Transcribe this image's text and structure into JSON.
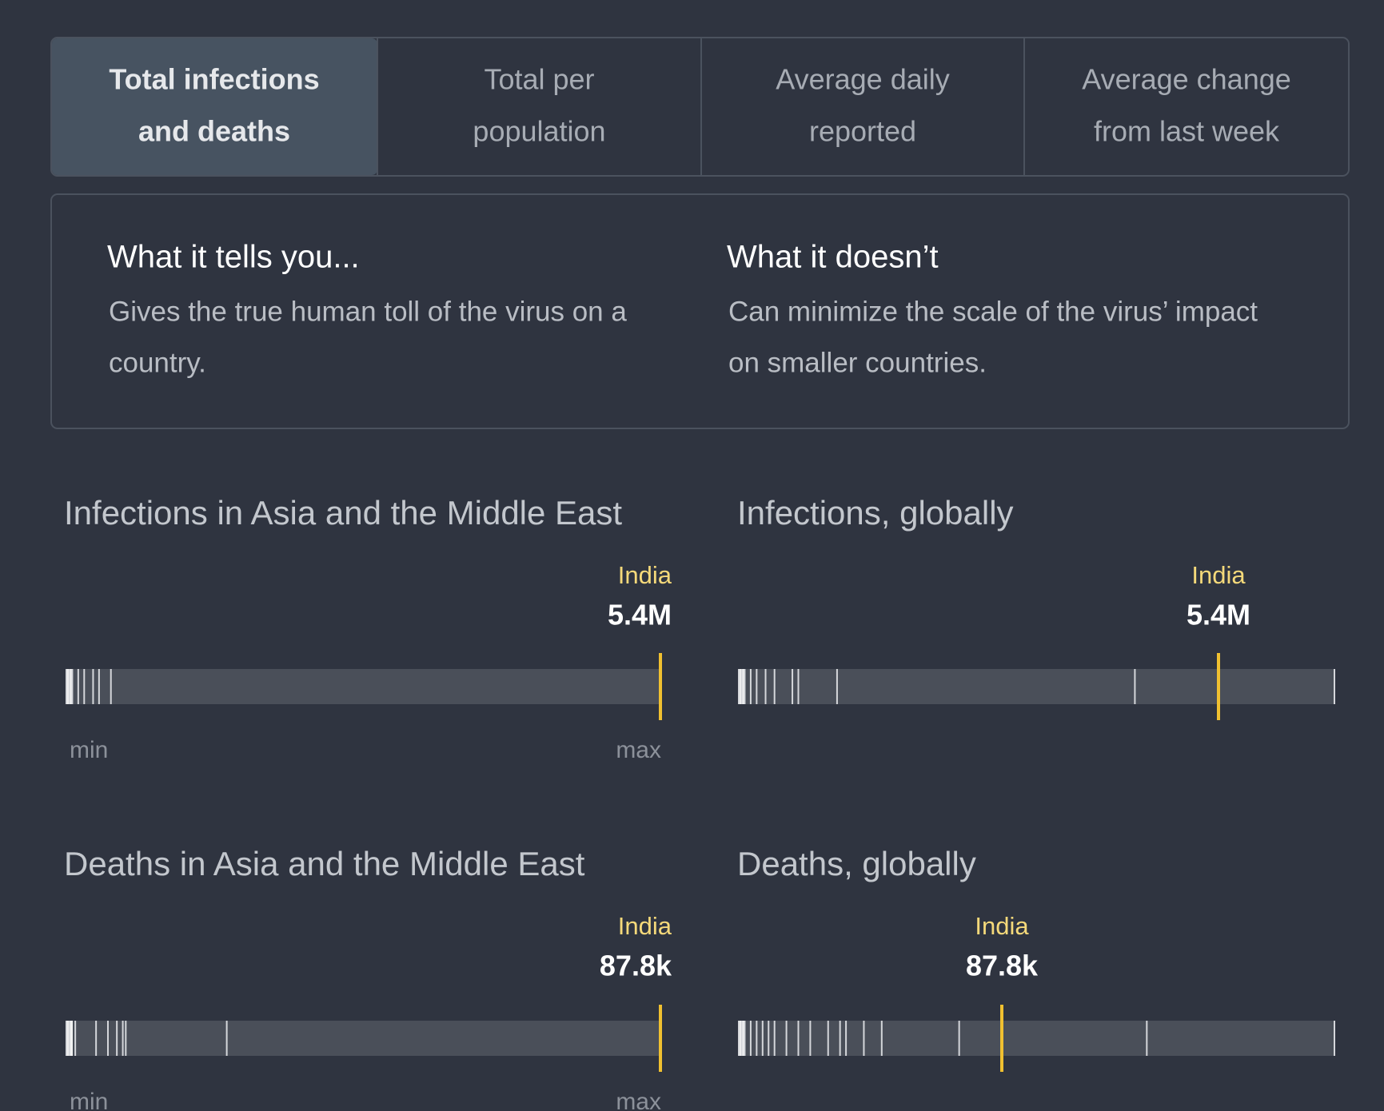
{
  "tabs": [
    {
      "label": [
        "Total infections",
        "and deaths"
      ],
      "active": true
    },
    {
      "label": [
        "Total per",
        "population"
      ],
      "active": false
    },
    {
      "label": [
        "Average daily",
        "reported"
      ],
      "active": false
    },
    {
      "label": [
        "Average change",
        "from last week"
      ],
      "active": false
    }
  ],
  "info": [
    {
      "heading": "What it tells you...",
      "text": [
        "Gives the true human toll of the virus on a",
        "country."
      ]
    },
    {
      "heading": "What it doesn’t",
      "text": [
        "Can minimize the scale of the virus’ impact",
        "on smaller countries."
      ]
    }
  ],
  "charts": [
    {
      "title": "Infections in Asia and the Middle East",
      "highlight": "India",
      "value_label": "5.4M",
      "min_label": "min",
      "max_label": "max"
    },
    {
      "title": "Infections, globally",
      "highlight": "India",
      "value_label": "5.4M"
    },
    {
      "title": "Deaths in Asia and the Middle East",
      "highlight": "India",
      "value_label": "87.8k",
      "min_label": "min",
      "max_label": "max"
    },
    {
      "title": "Deaths, globally",
      "highlight": "India",
      "value_label": "87.8k"
    }
  ]
}
